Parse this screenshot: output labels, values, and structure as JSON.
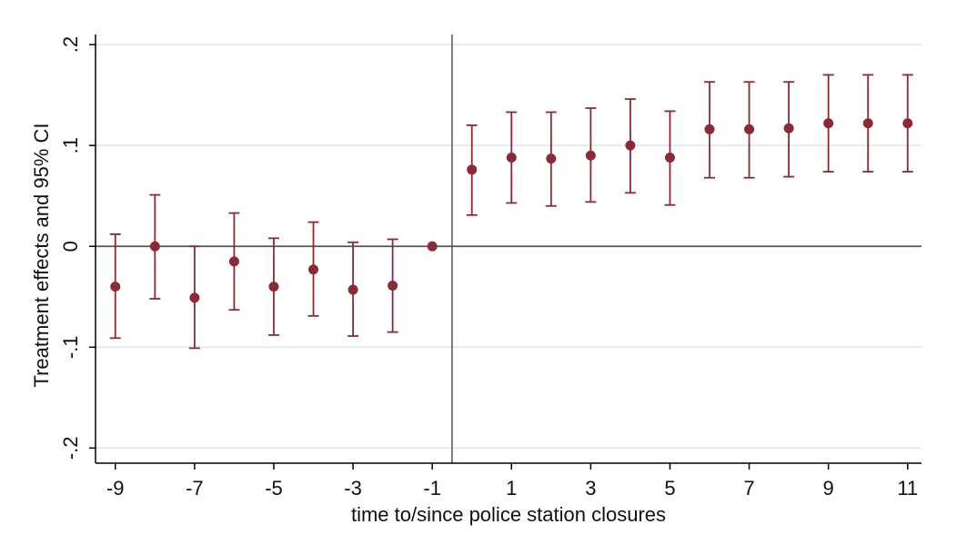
{
  "chart_data": {
    "type": "scatter",
    "subtype": "coefficient-plot-with-error-bars",
    "xlabel": "time to/since police station closures",
    "ylabel": "Treatment effects and 95% CI",
    "xlim": [
      -9.5,
      11.35
    ],
    "ylim": [
      -0.215,
      0.21
    ],
    "x_ticks": [
      -9,
      -7,
      -5,
      -3,
      -1,
      1,
      3,
      5,
      7,
      9,
      11
    ],
    "x_tick_labels": [
      "-9",
      "-7",
      "-5",
      "-3",
      "-1",
      "1",
      "3",
      "5",
      "7",
      "9",
      "11"
    ],
    "y_ticks": [
      -0.2,
      -0.1,
      0,
      0.1,
      0.2
    ],
    "y_tick_labels": [
      "-.2",
      "-.1",
      "0",
      ".1",
      ".2"
    ],
    "grid": "horizontal",
    "reference_lines": {
      "horizontal_y": 0,
      "vertical_x": -0.5
    },
    "colors": {
      "marker": "#8b2a35",
      "reference_line": "#555555",
      "grid": "#dde6ea"
    },
    "series": [
      {
        "x": [
          -9,
          -8,
          -7,
          -6,
          -5,
          -4,
          -3,
          -2,
          -1,
          0,
          1,
          2,
          3,
          4,
          5,
          6,
          7,
          8,
          9,
          10,
          11
        ],
        "estimate": [
          -0.04,
          0.0,
          -0.051,
          -0.015,
          -0.04,
          -0.023,
          -0.043,
          -0.039,
          0.0,
          0.076,
          0.088,
          0.087,
          0.09,
          0.1,
          0.088,
          0.116,
          0.116,
          0.117,
          0.122,
          0.122,
          0.122
        ],
        "ci_low": [
          -0.091,
          -0.052,
          -0.101,
          -0.063,
          -0.088,
          -0.069,
          -0.089,
          -0.085,
          0.0,
          0.031,
          0.043,
          0.04,
          0.044,
          0.053,
          0.041,
          0.068,
          0.068,
          0.069,
          0.074,
          0.074,
          0.074
        ],
        "ci_high": [
          0.012,
          0.051,
          0.0,
          0.033,
          0.008,
          0.024,
          0.004,
          0.007,
          0.0,
          0.12,
          0.133,
          0.133,
          0.137,
          0.146,
          0.134,
          0.163,
          0.163,
          0.163,
          0.17,
          0.17,
          0.17
        ]
      }
    ]
  }
}
